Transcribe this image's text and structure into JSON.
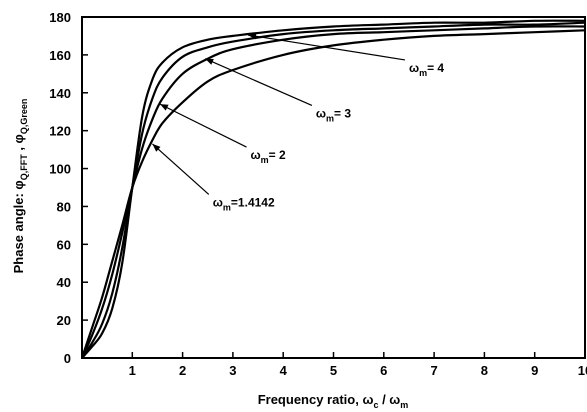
{
  "chart_data": {
    "type": "line",
    "title": "",
    "xlabel_main": "Frequency ratio, ω",
    "xlabel_sub1": "c",
    "xlabel_mid": " / ω",
    "xlabel_sub2": "m",
    "ylabel_main": "Phase angle: φ",
    "ylabel_sub1": "Q,FFT",
    "ylabel_mid": " , φ",
    "ylabel_sub2": "Q,Green",
    "xlim": [
      0,
      10
    ],
    "ylim": [
      0,
      180
    ],
    "xticks": [
      1,
      2,
      3,
      4,
      5,
      6,
      7,
      8,
      9,
      10
    ],
    "xtick_labels": [
      "1",
      "2",
      "3",
      "4",
      "5",
      "6",
      "7",
      "8",
      "9",
      "10"
    ],
    "yticks": [
      0,
      20,
      40,
      60,
      80,
      100,
      120,
      140,
      160,
      180
    ],
    "ytick_labels": [
      "0",
      "20",
      "40",
      "60",
      "80",
      "100",
      "120",
      "140",
      "160",
      "180"
    ],
    "grid": false,
    "series": [
      {
        "id": "s1",
        "wm": 1.4142,
        "x": [
          0,
          0.2,
          0.4,
          0.6,
          0.8,
          1.0,
          1.2,
          1.4,
          1.6,
          2.0,
          2.5,
          3.0,
          4.0,
          5.0,
          6.0,
          7.0,
          8.0,
          9.0,
          10.0
        ],
        "y": [
          0,
          16,
          32,
          51,
          70,
          90,
          104,
          115,
          124,
          135,
          146,
          152,
          160,
          165,
          168,
          170,
          171,
          172,
          173
        ]
      },
      {
        "id": "s2",
        "wm": 2,
        "x": [
          0,
          0.2,
          0.4,
          0.6,
          0.8,
          1.0,
          1.2,
          1.4,
          1.6,
          2.0,
          2.5,
          3.0,
          4.0,
          5.0,
          6.0,
          7.0,
          8.0,
          9.0,
          10.0
        ],
        "y": [
          0,
          12,
          26,
          44,
          66,
          90,
          111,
          126,
          137,
          150,
          158,
          163,
          168,
          171,
          172,
          173,
          174,
          175,
          175
        ]
      },
      {
        "id": "s3",
        "wm": 3,
        "x": [
          0,
          0.2,
          0.4,
          0.6,
          0.8,
          1.0,
          1.2,
          1.4,
          1.6,
          2.0,
          2.5,
          3.0,
          4.0,
          5.0,
          6.0,
          7.0,
          8.0,
          9.0,
          10.0
        ],
        "y": [
          0,
          8,
          18,
          34,
          58,
          90,
          119,
          137,
          148,
          159,
          164,
          167,
          171,
          173,
          174,
          175,
          176,
          176,
          177
        ]
      },
      {
        "id": "s4",
        "wm": 4,
        "x": [
          0,
          0.2,
          0.4,
          0.6,
          0.8,
          1.0,
          1.2,
          1.4,
          1.6,
          2.0,
          2.5,
          3.0,
          4.0,
          5.0,
          6.0,
          7.0,
          8.0,
          9.0,
          10.0
        ],
        "y": [
          0,
          6,
          13,
          26,
          50,
          90,
          128,
          147,
          156,
          164,
          168,
          170,
          173,
          175,
          176,
          177,
          177,
          178,
          178
        ]
      }
    ],
    "annotations": [
      {
        "id": "a4",
        "label_main": "ω",
        "label_sub": "m",
        "label_rest": "= 4",
        "text_x": 6.5,
        "text_y": 151,
        "arrow_x": 3.3,
        "arrow_y": 170.5
      },
      {
        "id": "a3",
        "label_main": "ω",
        "label_sub": "m",
        "label_rest": "= 3",
        "text_x": 4.65,
        "text_y": 127,
        "arrow_x": 2.45,
        "arrow_y": 158
      },
      {
        "id": "a2",
        "label_main": "ω",
        "label_sub": "m",
        "label_rest": "= 2",
        "text_x": 3.35,
        "text_y": 105,
        "arrow_x": 1.55,
        "arrow_y": 134
      },
      {
        "id": "a1",
        "label_main": "ω",
        "label_sub": "m",
        "label_rest": "=1.4142",
        "text_x": 2.6,
        "text_y": 80,
        "arrow_x": 1.4,
        "arrow_y": 113
      }
    ]
  }
}
